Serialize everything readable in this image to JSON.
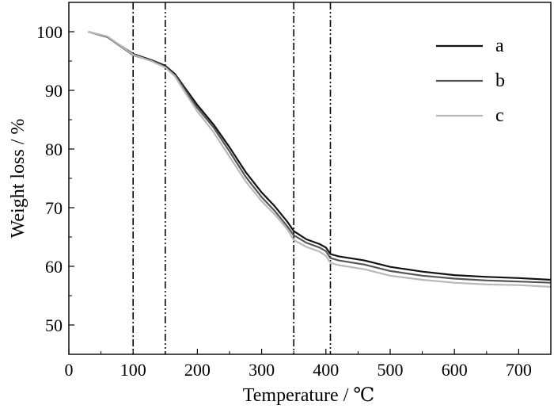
{
  "chart_data": {
    "type": "line",
    "xlabel": "Temperature / ℃",
    "ylabel": "Weight loss / %",
    "xlim": [
      0,
      750
    ],
    "ylim": [
      45,
      105
    ],
    "xticks": [
      0,
      100,
      200,
      300,
      400,
      500,
      600,
      700
    ],
    "yticks": [
      50,
      60,
      70,
      80,
      90,
      100
    ],
    "grid": false,
    "legend_position": "top-right",
    "vertical_markers": [
      {
        "x": 100,
        "style": "dash-dot"
      },
      {
        "x": 150,
        "style": "dash-dot-dot"
      },
      {
        "x": 350,
        "style": "dash-dot"
      },
      {
        "x": 407,
        "style": "dash-dot-dot"
      }
    ],
    "series": [
      {
        "name": "a",
        "color": "#111111",
        "points": [
          [
            30,
            100
          ],
          [
            60,
            99.1
          ],
          [
            100,
            96.2
          ],
          [
            130,
            95.1
          ],
          [
            150,
            94.2
          ],
          [
            165,
            92.8
          ],
          [
            180,
            90.5
          ],
          [
            200,
            87.5
          ],
          [
            225,
            84.2
          ],
          [
            250,
            80.3
          ],
          [
            275,
            76.1
          ],
          [
            300,
            72.6
          ],
          [
            320,
            70.3
          ],
          [
            340,
            67.6
          ],
          [
            350,
            66.0
          ],
          [
            370,
            64.6
          ],
          [
            390,
            63.8
          ],
          [
            400,
            63.2
          ],
          [
            407,
            62.1
          ],
          [
            420,
            61.7
          ],
          [
            460,
            61.0
          ],
          [
            500,
            59.9
          ],
          [
            550,
            59.1
          ],
          [
            600,
            58.5
          ],
          [
            650,
            58.2
          ],
          [
            700,
            58.0
          ],
          [
            750,
            57.7
          ]
        ]
      },
      {
        "name": "b",
        "color": "#555555",
        "points": [
          [
            30,
            100
          ],
          [
            60,
            99.1
          ],
          [
            100,
            96.0
          ],
          [
            130,
            95.0
          ],
          [
            150,
            94.0
          ],
          [
            165,
            92.6
          ],
          [
            180,
            90.2
          ],
          [
            200,
            87.0
          ],
          [
            225,
            83.7
          ],
          [
            250,
            79.6
          ],
          [
            275,
            75.3
          ],
          [
            300,
            71.8
          ],
          [
            320,
            69.5
          ],
          [
            340,
            66.8
          ],
          [
            350,
            65.3
          ],
          [
            370,
            64.0
          ],
          [
            390,
            63.2
          ],
          [
            400,
            62.6
          ],
          [
            407,
            61.4
          ],
          [
            420,
            61.0
          ],
          [
            460,
            60.3
          ],
          [
            500,
            59.2
          ],
          [
            550,
            58.4
          ],
          [
            600,
            57.9
          ],
          [
            650,
            57.6
          ],
          [
            700,
            57.4
          ],
          [
            750,
            57.2
          ]
        ]
      },
      {
        "name": "c",
        "color": "#b8b8b8",
        "points": [
          [
            30,
            100
          ],
          [
            60,
            99.2
          ],
          [
            100,
            96.1
          ],
          [
            130,
            94.9
          ],
          [
            150,
            93.9
          ],
          [
            165,
            92.4
          ],
          [
            180,
            89.8
          ],
          [
            200,
            86.4
          ],
          [
            225,
            82.9
          ],
          [
            250,
            78.7
          ],
          [
            275,
            74.5
          ],
          [
            300,
            71.1
          ],
          [
            320,
            68.9
          ],
          [
            340,
            66.3
          ],
          [
            350,
            64.5
          ],
          [
            370,
            63.3
          ],
          [
            390,
            62.5
          ],
          [
            400,
            61.8
          ],
          [
            407,
            60.6
          ],
          [
            420,
            60.2
          ],
          [
            460,
            59.5
          ],
          [
            500,
            58.4
          ],
          [
            550,
            57.7
          ],
          [
            600,
            57.2
          ],
          [
            650,
            56.9
          ],
          [
            700,
            56.8
          ],
          [
            750,
            56.5
          ]
        ]
      }
    ]
  }
}
